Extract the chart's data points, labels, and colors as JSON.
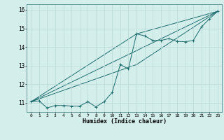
{
  "xlabel": "Humidex (Indice chaleur)",
  "background_color": "#d4eeec",
  "grid_color": "#b8d8d6",
  "line_color": "#1a6b6b",
  "xlim": [
    -0.5,
    23.5
  ],
  "ylim": [
    10.5,
    16.3
  ],
  "xticks": [
    0,
    1,
    2,
    3,
    4,
    5,
    6,
    7,
    8,
    9,
    10,
    11,
    12,
    13,
    14,
    15,
    16,
    17,
    18,
    19,
    20,
    21,
    22,
    23
  ],
  "yticks": [
    11,
    12,
    13,
    14,
    15,
    16
  ],
  "series_main": {
    "x": [
      0,
      1,
      2,
      3,
      4,
      5,
      6,
      7,
      8,
      9,
      10,
      11,
      12,
      13,
      14,
      15,
      16,
      17,
      18,
      19,
      20,
      21,
      22,
      23
    ],
    "y": [
      11.05,
      11.1,
      10.72,
      10.85,
      10.85,
      10.82,
      10.82,
      11.05,
      10.78,
      11.05,
      11.55,
      13.05,
      12.82,
      14.7,
      14.6,
      14.35,
      14.35,
      14.45,
      14.3,
      14.28,
      14.35,
      15.08,
      15.52,
      15.92
    ]
  },
  "line1": {
    "x": [
      0,
      23
    ],
    "y": [
      11.05,
      15.92
    ]
  },
  "line2": {
    "x": [
      0,
      13,
      23
    ],
    "y": [
      11.05,
      13.05,
      15.92
    ]
  },
  "line3": {
    "x": [
      0,
      13,
      23
    ],
    "y": [
      11.05,
      14.7,
      15.92
    ]
  }
}
